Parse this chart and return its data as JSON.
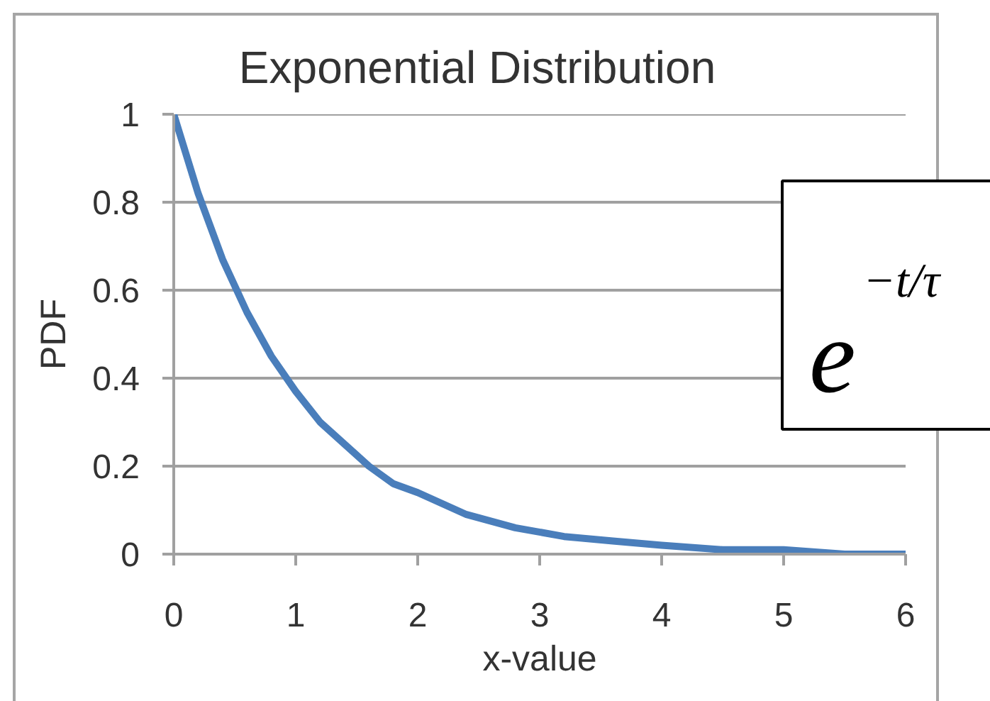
{
  "chart_data": {
    "type": "line",
    "title": "Exponential Distribution",
    "xlabel": "x-value",
    "ylabel": "PDF",
    "x": [
      0,
      0.2,
      0.4,
      0.6,
      0.8,
      1,
      1.2,
      1.4,
      1.6,
      1.8,
      2,
      2.4,
      2.8,
      3.2,
      3.6,
      4,
      4.5,
      5,
      5.5,
      6
    ],
    "series": [
      {
        "color": "#4a7ebb",
        "values": [
          1,
          0.82,
          0.67,
          0.55,
          0.45,
          0.37,
          0.3,
          0.25,
          0.2,
          0.16,
          0.14,
          0.09,
          0.06,
          0.04,
          0.03,
          0.02,
          0.01,
          0.01,
          0,
          0
        ]
      }
    ],
    "xlim": [
      0,
      6
    ],
    "ylim": [
      0,
      1
    ],
    "xticks": [
      0,
      1,
      2,
      3,
      4,
      5,
      6
    ],
    "yticks": [
      0,
      0.2,
      0.4,
      0.6,
      0.8,
      1
    ],
    "grid": "y",
    "marker": "none",
    "line_style": "solid",
    "annotations": [
      "e$^{−t/τ}$"
    ]
  }
}
